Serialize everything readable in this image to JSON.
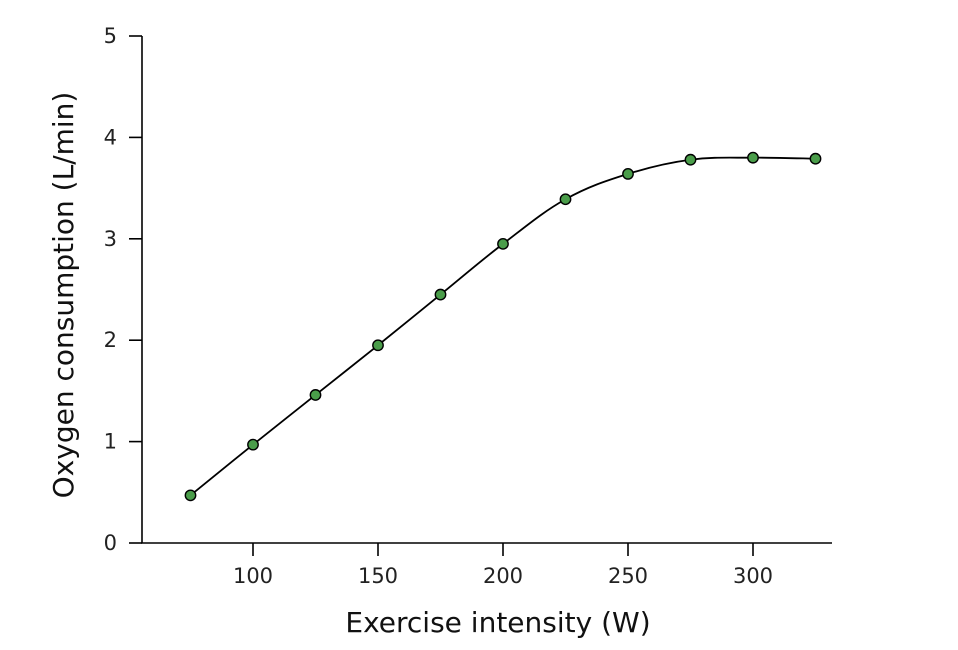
{
  "chart_data": {
    "type": "line",
    "xlabel": "Exercise intensity (W)",
    "ylabel": "Oxygen consumption (L/min)",
    "xlim": [
      50,
      330
    ],
    "ylim": [
      0,
      5
    ],
    "x_ticks": [
      100,
      150,
      200,
      250,
      300
    ],
    "y_ticks": [
      0,
      1,
      2,
      3,
      4,
      5
    ],
    "grid": false,
    "series": [
      {
        "x": [
          75,
          100,
          125,
          150,
          175,
          200,
          225,
          250,
          275,
          300,
          325
        ],
        "values": [
          0.47,
          0.97,
          1.46,
          1.95,
          2.45,
          2.95,
          3.39,
          3.64,
          3.78,
          3.8,
          3.79
        ],
        "marker_color": "#4a9d4a",
        "line_color": "#000000"
      }
    ]
  }
}
